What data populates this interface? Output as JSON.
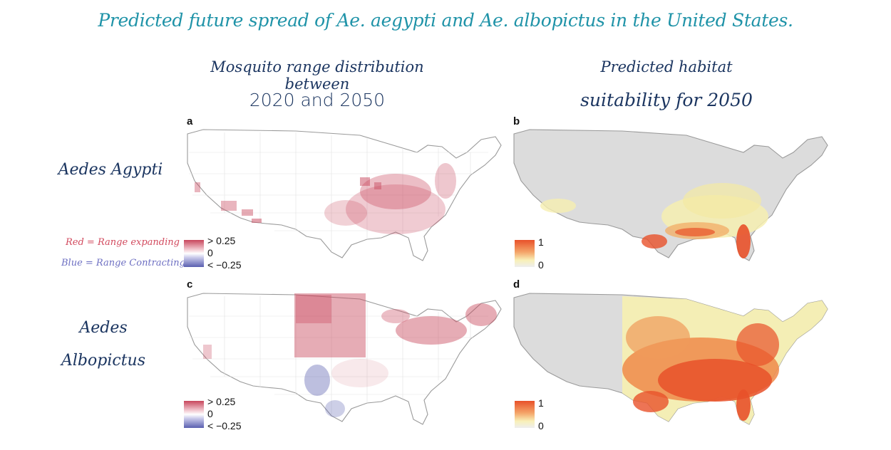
{
  "title": "Predicted future spread of Ae. aegypti and Ae. albopictus in the United States.",
  "columns": {
    "left": {
      "line1": "Mosquito range distribution between",
      "line2": "2020 and 2050"
    },
    "right": {
      "line1": "Predicted habitat",
      "line2": "suitability for 2050"
    }
  },
  "rows": {
    "aegypti": "Aedes Agypti",
    "albopictus_line1": "Aedes",
    "albopictus_line2": "Albopictus"
  },
  "notes": {
    "red": "Red = Range expanding",
    "blue": "Blue = Range Contracting"
  },
  "panels": {
    "a": {
      "label": "a"
    },
    "b": {
      "label": "b"
    },
    "c": {
      "label": "c"
    },
    "d": {
      "label": "d"
    }
  },
  "legend_change": {
    "high": "> 0.25",
    "mid": "0",
    "low": "< −0.25"
  },
  "legend_suitability": {
    "high": "1",
    "low": "0"
  },
  "colors": {
    "title": "#1f93a8",
    "heading": "#1b3560",
    "expanding": "#c8465c",
    "contracting": "#5a5fb0",
    "suitability_high": "#e8512a",
    "suitability_low": "#f6f3d6",
    "no_data": "#dcdcdc"
  }
}
